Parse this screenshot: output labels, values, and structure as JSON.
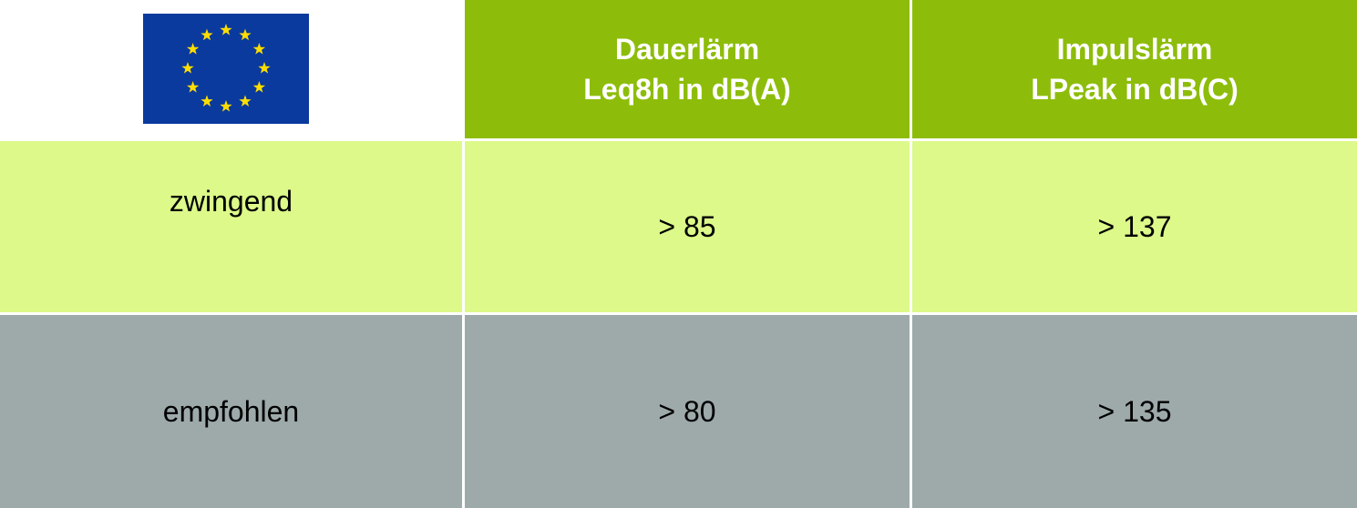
{
  "table": {
    "header": [
      [
        "Dauerlärm",
        "Leq8h in dB(A)"
      ],
      [
        "Impulslärm",
        "LPeak in dB(C)"
      ]
    ],
    "rows": [
      [
        "zwingend",
        "> 85",
        "> 137"
      ],
      [
        "empfohlen",
        "> 80",
        "> 135"
      ]
    ]
  }
}
